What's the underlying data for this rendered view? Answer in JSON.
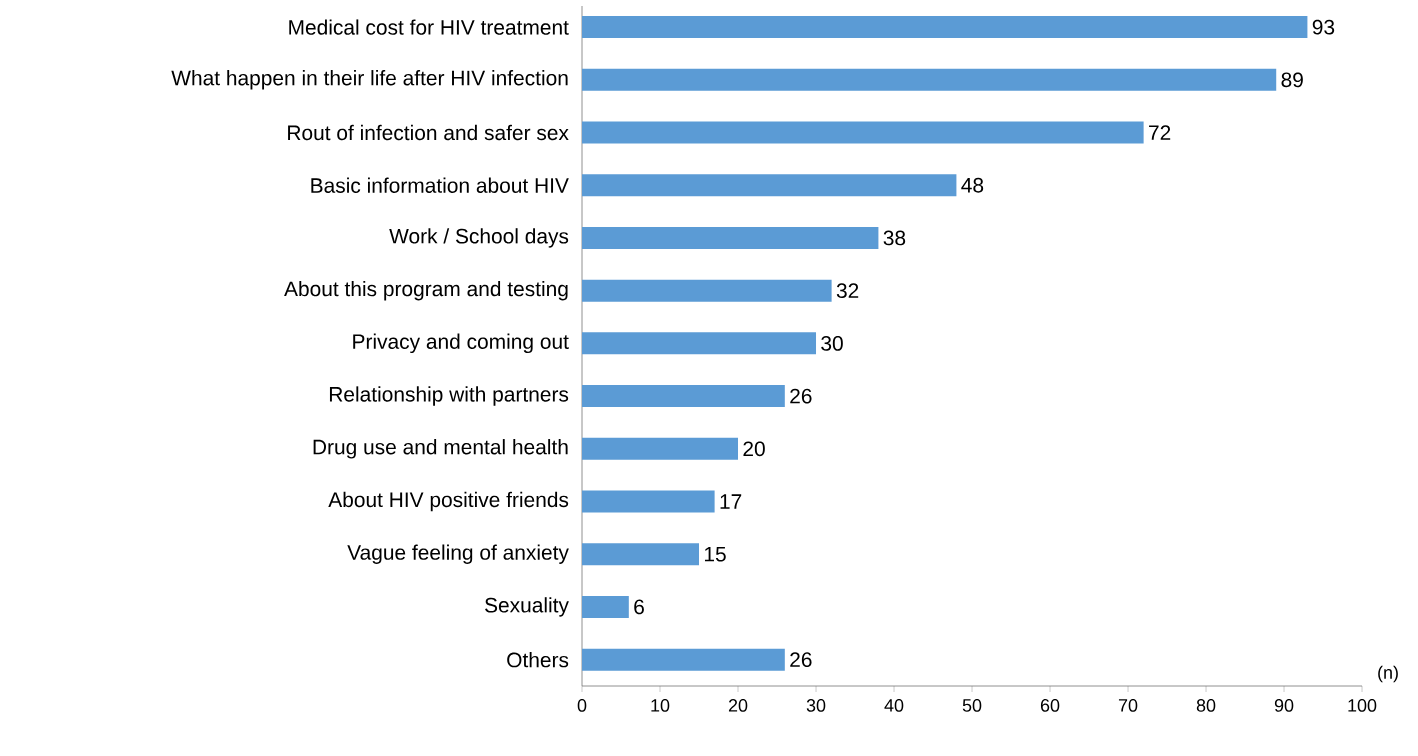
{
  "chart_data": {
    "type": "bar",
    "orientation": "horizontal",
    "xlabel": "(n)",
    "categories": [
      "Medical cost for HIV treatment",
      "What happen in their life after HIV infection",
      "Rout of infection and safer sex",
      "Basic information about HIV",
      "Work / School days",
      "About this program and testing",
      "Privacy and coming out",
      "Relationship with partners",
      "Drug use and mental health",
      "About HIV positive friends",
      "Vague feeling of anxiety",
      "Sexuality",
      "Others"
    ],
    "values": [
      93,
      89,
      72,
      48,
      38,
      32,
      30,
      26,
      20,
      17,
      15,
      6,
      26
    ],
    "color": "#5b9bd5",
    "xlim": [
      0,
      100
    ],
    "xticks": [
      0,
      10,
      20,
      30,
      40,
      50,
      60,
      70,
      80,
      90,
      100
    ],
    "data_labels": true
  }
}
